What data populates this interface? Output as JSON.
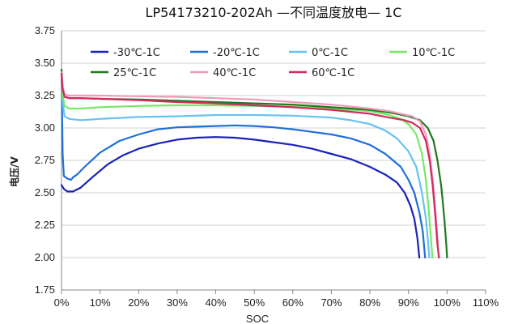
{
  "chart_data": {
    "type": "line",
    "title": "LP54173210-202Ah —不同温度放电— 1C",
    "xlabel": "SOC",
    "ylabel": "电压/V",
    "xlim": [
      0,
      110
    ],
    "ylim": [
      1.75,
      3.75
    ],
    "x_ticks": [
      0,
      10,
      20,
      30,
      40,
      50,
      60,
      70,
      80,
      90,
      100,
      110
    ],
    "x_tick_labels": [
      "0%",
      "10%",
      "20%",
      "30%",
      "40%",
      "50%",
      "60%",
      "70%",
      "80%",
      "90%",
      "100%",
      "110%"
    ],
    "y_ticks": [
      1.75,
      2.0,
      2.25,
      2.5,
      2.75,
      3.0,
      3.25,
      3.5,
      3.75
    ],
    "y_tick_labels": [
      "1.75",
      "2.00",
      "2.25",
      "2.50",
      "2.75",
      "3.00",
      "3.25",
      "3.50",
      "3.75"
    ],
    "grid": "horizontal",
    "legend_position": "top-inside",
    "series": [
      {
        "name": "-30℃-1C",
        "color": "#1a22b8",
        "points": [
          [
            0,
            2.56
          ],
          [
            0.6,
            2.53
          ],
          [
            1.5,
            2.51
          ],
          [
            3,
            2.51
          ],
          [
            5,
            2.54
          ],
          [
            8,
            2.62
          ],
          [
            12,
            2.72
          ],
          [
            16,
            2.79
          ],
          [
            20,
            2.84
          ],
          [
            25,
            2.88
          ],
          [
            30,
            2.91
          ],
          [
            35,
            2.925
          ],
          [
            40,
            2.93
          ],
          [
            45,
            2.925
          ],
          [
            50,
            2.91
          ],
          [
            55,
            2.89
          ],
          [
            60,
            2.87
          ],
          [
            65,
            2.84
          ],
          [
            70,
            2.8
          ],
          [
            75,
            2.76
          ],
          [
            80,
            2.7
          ],
          [
            84,
            2.64
          ],
          [
            87,
            2.58
          ],
          [
            89,
            2.5
          ],
          [
            90.5,
            2.4
          ],
          [
            91.5,
            2.3
          ],
          [
            92.3,
            2.15
          ],
          [
            92.8,
            2.0
          ]
        ]
      },
      {
        "name": "-20℃-1C",
        "color": "#1e6fd9",
        "points": [
          [
            0,
            3.44
          ],
          [
            0.3,
            2.8
          ],
          [
            0.6,
            2.63
          ],
          [
            1.5,
            2.61
          ],
          [
            2.5,
            2.6
          ],
          [
            3,
            2.62
          ],
          [
            4,
            2.64
          ],
          [
            6,
            2.7
          ],
          [
            10,
            2.81
          ],
          [
            15,
            2.9
          ],
          [
            20,
            2.95
          ],
          [
            25,
            2.99
          ],
          [
            30,
            3.005
          ],
          [
            35,
            3.01
          ],
          [
            40,
            3.015
          ],
          [
            45,
            3.02
          ],
          [
            50,
            3.015
          ],
          [
            55,
            3.005
          ],
          [
            60,
            2.99
          ],
          [
            65,
            2.97
          ],
          [
            70,
            2.95
          ],
          [
            75,
            2.92
          ],
          [
            80,
            2.87
          ],
          [
            84,
            2.8
          ],
          [
            88,
            2.7
          ],
          [
            90,
            2.6
          ],
          [
            91.5,
            2.5
          ],
          [
            92.8,
            2.35
          ],
          [
            93.7,
            2.2
          ],
          [
            94.3,
            2.0
          ]
        ]
      },
      {
        "name": "0℃-1C",
        "color": "#66c3f0",
        "points": [
          [
            0,
            3.43
          ],
          [
            0.3,
            3.2
          ],
          [
            0.8,
            3.09
          ],
          [
            2,
            3.07
          ],
          [
            5,
            3.06
          ],
          [
            10,
            3.07
          ],
          [
            20,
            3.085
          ],
          [
            30,
            3.09
          ],
          [
            40,
            3.1
          ],
          [
            50,
            3.1
          ],
          [
            60,
            3.095
          ],
          [
            70,
            3.08
          ],
          [
            75,
            3.06
          ],
          [
            80,
            3.03
          ],
          [
            84,
            2.98
          ],
          [
            87,
            2.92
          ],
          [
            90,
            2.82
          ],
          [
            92,
            2.7
          ],
          [
            93.5,
            2.5
          ],
          [
            94.5,
            2.3
          ],
          [
            95,
            2.15
          ],
          [
            95.4,
            2.0
          ]
        ]
      },
      {
        "name": "10℃-1C",
        "color": "#77e866",
        "points": [
          [
            0,
            3.44
          ],
          [
            0.3,
            3.25
          ],
          [
            0.8,
            3.17
          ],
          [
            2,
            3.15
          ],
          [
            5,
            3.15
          ],
          [
            10,
            3.16
          ],
          [
            20,
            3.17
          ],
          [
            30,
            3.175
          ],
          [
            40,
            3.175
          ],
          [
            50,
            3.17
          ],
          [
            60,
            3.165
          ],
          [
            70,
            3.15
          ],
          [
            80,
            3.13
          ],
          [
            85,
            3.1
          ],
          [
            88,
            3.07
          ],
          [
            90,
            3.03
          ],
          [
            92,
            2.95
          ],
          [
            93.5,
            2.8
          ],
          [
            94.5,
            2.6
          ],
          [
            95.3,
            2.35
          ],
          [
            95.8,
            2.15
          ],
          [
            96.2,
            2.0
          ]
        ]
      },
      {
        "name": "25℃-1C",
        "color": "#1e7a1e",
        "points": [
          [
            0,
            3.45
          ],
          [
            0.3,
            3.3
          ],
          [
            0.8,
            3.24
          ],
          [
            2,
            3.23
          ],
          [
            5,
            3.23
          ],
          [
            10,
            3.225
          ],
          [
            20,
            3.22
          ],
          [
            30,
            3.21
          ],
          [
            40,
            3.2
          ],
          [
            50,
            3.19
          ],
          [
            60,
            3.18
          ],
          [
            70,
            3.16
          ],
          [
            80,
            3.14
          ],
          [
            85,
            3.12
          ],
          [
            90,
            3.09
          ],
          [
            93,
            3.06
          ],
          [
            95,
            3.0
          ],
          [
            96.5,
            2.9
          ],
          [
            97.5,
            2.75
          ],
          [
            98.5,
            2.55
          ],
          [
            99.3,
            2.3
          ],
          [
            99.8,
            2.1
          ],
          [
            100,
            2.0
          ]
        ]
      },
      {
        "name": "40℃-1C",
        "color": "#f09ab8",
        "points": [
          [
            0,
            3.43
          ],
          [
            0.3,
            3.32
          ],
          [
            0.8,
            3.26
          ],
          [
            2,
            3.25
          ],
          [
            5,
            3.25
          ],
          [
            10,
            3.25
          ],
          [
            20,
            3.245
          ],
          [
            30,
            3.24
          ],
          [
            40,
            3.23
          ],
          [
            50,
            3.22
          ],
          [
            60,
            3.2
          ],
          [
            70,
            3.18
          ],
          [
            80,
            3.15
          ],
          [
            85,
            3.13
          ],
          [
            88,
            3.11
          ],
          [
            91,
            3.09
          ],
          [
            93,
            3.05
          ],
          [
            94.5,
            2.95
          ],
          [
            95.5,
            2.8
          ],
          [
            96.3,
            2.6
          ],
          [
            97,
            2.35
          ],
          [
            97.5,
            2.15
          ],
          [
            97.8,
            2.0
          ]
        ]
      },
      {
        "name": "60℃-1C",
        "color": "#d02a5e",
        "points": [
          [
            0,
            3.42
          ],
          [
            0.3,
            3.3
          ],
          [
            0.8,
            3.24
          ],
          [
            2,
            3.23
          ],
          [
            5,
            3.23
          ],
          [
            10,
            3.225
          ],
          [
            20,
            3.215
          ],
          [
            30,
            3.2
          ],
          [
            40,
            3.19
          ],
          [
            50,
            3.175
          ],
          [
            60,
            3.16
          ],
          [
            70,
            3.14
          ],
          [
            80,
            3.11
          ],
          [
            85,
            3.08
          ],
          [
            89,
            3.06
          ],
          [
            91,
            3.04
          ],
          [
            93,
            3.0
          ],
          [
            94.5,
            2.9
          ],
          [
            95.5,
            2.75
          ],
          [
            96.3,
            2.55
          ],
          [
            97,
            2.3
          ],
          [
            97.5,
            2.1
          ],
          [
            97.9,
            2.0
          ]
        ]
      }
    ]
  }
}
